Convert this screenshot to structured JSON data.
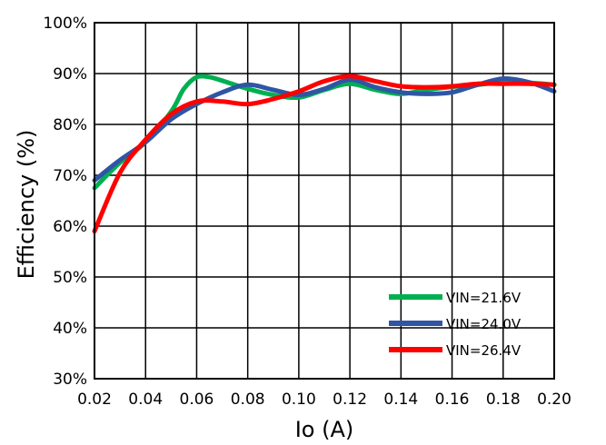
{
  "chart_data": {
    "type": "line",
    "title": "",
    "xlabel": "Io (A)",
    "ylabel": "Efficiency  (%)",
    "xlim": [
      0.02,
      0.2
    ],
    "ylim": [
      30,
      100
    ],
    "x_ticks": [
      "0.02",
      "0.04",
      "0.06",
      "0.08",
      "0.10",
      "0.12",
      "0.14",
      "0.16",
      "0.18",
      "0.20"
    ],
    "y_ticks": [
      "30%",
      "40%",
      "50%",
      "60%",
      "70%",
      "80%",
      "90%",
      "100%"
    ],
    "grid": true,
    "legend_position": "bottom-right",
    "series": [
      {
        "name": "VIN=21.6V",
        "color": "#00b050",
        "x": [
          0.02,
          0.03,
          0.04,
          0.05,
          0.055,
          0.06,
          0.065,
          0.07,
          0.08,
          0.09,
          0.1,
          0.11,
          0.12,
          0.13,
          0.14,
          0.15,
          0.16,
          0.17,
          0.18,
          0.19,
          0.2
        ],
        "y": [
          67.5,
          72.5,
          76.5,
          82.5,
          87.0,
          89.3,
          89.3,
          88.6,
          87.0,
          85.8,
          85.3,
          86.8,
          88.0,
          86.8,
          86.0,
          86.8,
          87.4,
          87.8,
          88.3,
          88.2,
          87.8
        ]
      },
      {
        "name": "VIN=24.0V",
        "color": "#2f55a4",
        "x": [
          0.02,
          0.03,
          0.04,
          0.05,
          0.06,
          0.07,
          0.08,
          0.09,
          0.1,
          0.11,
          0.12,
          0.13,
          0.14,
          0.15,
          0.16,
          0.17,
          0.18,
          0.19,
          0.2
        ],
        "y": [
          69.0,
          73.0,
          76.5,
          81.0,
          84.0,
          86.3,
          87.8,
          86.8,
          85.8,
          87.0,
          88.8,
          87.3,
          86.3,
          86.0,
          86.3,
          87.8,
          89.0,
          88.3,
          86.5
        ]
      },
      {
        "name": "VIN=26.4V",
        "color": "#ff0000",
        "x": [
          0.02,
          0.03,
          0.04,
          0.05,
          0.06,
          0.07,
          0.08,
          0.09,
          0.1,
          0.11,
          0.12,
          0.13,
          0.14,
          0.15,
          0.16,
          0.17,
          0.18,
          0.19,
          0.2
        ],
        "y": [
          59.0,
          70.5,
          77.0,
          82.0,
          84.5,
          84.5,
          84.0,
          85.0,
          86.5,
          88.5,
          89.5,
          88.5,
          87.5,
          87.3,
          87.5,
          88.0,
          88.0,
          88.0,
          87.8
        ]
      }
    ]
  }
}
